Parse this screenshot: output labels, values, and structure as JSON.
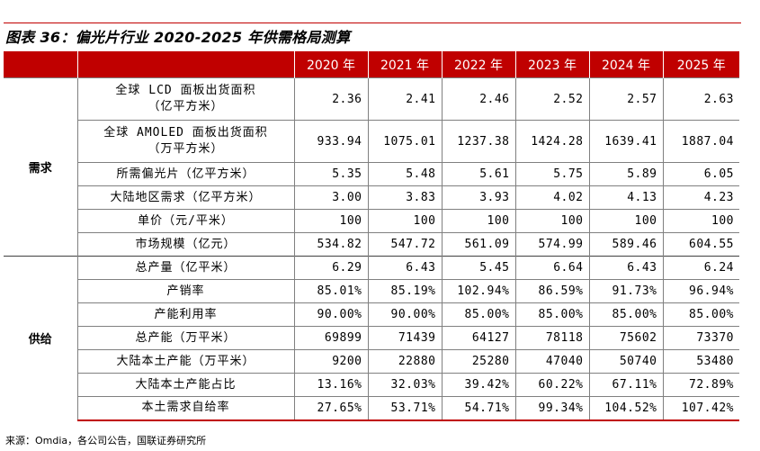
{
  "title": "图表 36：偏光片行业 2020-2025 年供需格局测算",
  "header": {
    "group": "",
    "item": "",
    "years": [
      "2020 年",
      "2021 年",
      "2022 年",
      "2023 年",
      "2024 年",
      "2025 年"
    ]
  },
  "groups": [
    {
      "name": "需求",
      "rows": [
        {
          "label": "全球 LCD 面板出货面积\n（亿平方米）",
          "values": [
            "2.36",
            "2.41",
            "2.46",
            "2.52",
            "2.57",
            "2.63"
          ],
          "tall": true
        },
        {
          "label": "全球 AMOLED 面板出货面积\n（万平方米）",
          "values": [
            "933.94",
            "1075.01",
            "1237.38",
            "1424.28",
            "1639.41",
            "1887.04"
          ],
          "tall": true
        },
        {
          "label": "所需偏光片（亿平方米）",
          "values": [
            "5.35",
            "5.48",
            "5.61",
            "5.75",
            "5.89",
            "6.05"
          ]
        },
        {
          "label": "大陆地区需求（亿平方米）",
          "values": [
            "3.00",
            "3.83",
            "3.93",
            "4.02",
            "4.13",
            "4.23"
          ]
        },
        {
          "label": "单价（元/平米）",
          "values": [
            "100",
            "100",
            "100",
            "100",
            "100",
            "100"
          ]
        },
        {
          "label": "市场规模（亿元）",
          "values": [
            "534.82",
            "547.72",
            "561.09",
            "574.99",
            "589.46",
            "604.55"
          ]
        }
      ]
    },
    {
      "name": "供给",
      "rows": [
        {
          "label": "总产量（亿平米）",
          "values": [
            "6.29",
            "6.43",
            "5.45",
            "6.64",
            "6.43",
            "6.24"
          ]
        },
        {
          "label": "产销率",
          "values": [
            "85.01%",
            "85.19%",
            "102.94%",
            "86.59%",
            "91.73%",
            "96.94%"
          ]
        },
        {
          "label": "产能利用率",
          "values": [
            "90.00%",
            "90.00%",
            "85.00%",
            "85.00%",
            "85.00%",
            "85.00%"
          ]
        },
        {
          "label": "总产能（万平米）",
          "values": [
            "69899",
            "71439",
            "64127",
            "78118",
            "75602",
            "73370"
          ]
        },
        {
          "label": "大陆本土产能（万平米）",
          "values": [
            "9200",
            "22880",
            "25280",
            "47040",
            "50740",
            "53480"
          ]
        },
        {
          "label": "大陆本土产能占比",
          "values": [
            "13.16%",
            "32.03%",
            "39.42%",
            "60.22%",
            "67.11%",
            "72.89%"
          ]
        },
        {
          "label": "本土需求自给率",
          "values": [
            "27.65%",
            "53.71%",
            "54.71%",
            "99.34%",
            "104.52%",
            "107.42%"
          ]
        }
      ]
    }
  ],
  "source": "来源：Omdia，各公司公告，国联证券研究所",
  "colors": {
    "accent": "#c00000",
    "header_text": "#ffffff",
    "border": "#808080"
  }
}
